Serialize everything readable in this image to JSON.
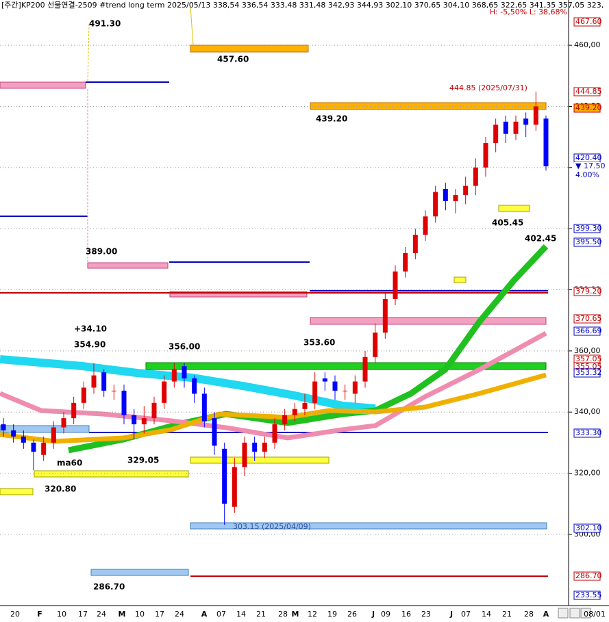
{
  "chart_data": {
    "type": "candlestick",
    "title": "[주간]KP200 선물연결-2509 #trend long term  2025/05/13 338,54 336,54 333,48 331,48 342,93 344,93 302,10 370,65 304,10 368,65 322,65 341,35 357,05 323,",
    "subtitle": "H: -5,50%  L: 38,68%",
    "open": [
      336,
      334,
      332,
      330,
      326,
      330,
      335,
      338,
      343,
      348,
      353,
      347,
      347,
      339,
      336,
      338,
      343,
      350,
      355,
      351,
      346,
      338,
      328,
      309,
      322,
      330,
      327,
      330,
      336,
      339,
      341,
      343,
      351,
      350,
      347,
      346,
      350,
      358,
      366,
      377,
      386,
      392,
      398,
      404,
      413,
      409,
      411,
      414,
      420,
      428,
      435,
      431,
      436,
      434,
      436
    ],
    "high": [
      338,
      336,
      334,
      331,
      332,
      337,
      340,
      345,
      350,
      356,
      354,
      349,
      349,
      341,
      342,
      345,
      352,
      356,
      356,
      352,
      348,
      340,
      330,
      325,
      332,
      332,
      332,
      338,
      341,
      343,
      346,
      353,
      353,
      352,
      349,
      352,
      360,
      369,
      379,
      388,
      394,
      400,
      406,
      414,
      415,
      413,
      417,
      423,
      430,
      436,
      437,
      437,
      438,
      444.85,
      437
    ],
    "low": [
      332,
      330,
      328,
      321,
      324,
      328,
      333,
      336,
      341,
      346,
      345,
      344,
      336,
      331,
      333,
      336,
      341,
      348,
      348,
      343,
      335,
      326,
      303.15,
      307,
      319,
      324,
      325,
      328,
      334,
      337,
      339,
      341,
      347,
      344,
      344,
      343,
      348,
      356,
      364,
      375,
      384,
      390,
      396,
      402,
      406,
      405,
      408,
      411,
      417,
      425,
      428,
      429,
      430,
      432,
      419
    ],
    "close": [
      334,
      332,
      330,
      327,
      330,
      335,
      338,
      343,
      348,
      352,
      347,
      347,
      339,
      336,
      338,
      343,
      350,
      354,
      351,
      346,
      337,
      329,
      310,
      322,
      330,
      327,
      330,
      336,
      339,
      341,
      343,
      350,
      350,
      347,
      347,
      350,
      358,
      366,
      377,
      386,
      392,
      398,
      404,
      412,
      409,
      411,
      414,
      420,
      428,
      434,
      431,
      435,
      434,
      440,
      420.4
    ],
    "up_color": "#e00000",
    "down_color": "#0000ff",
    "ylim": [
      276.7,
      474.8
    ],
    "yticks": [
      {
        "value": 300,
        "label": "300,00"
      },
      {
        "value": 320,
        "label": "320,00"
      },
      {
        "value": 340,
        "label": "340,00"
      },
      {
        "value": 360,
        "label": "360,00"
      },
      {
        "value": 380,
        "label": "380,00"
      },
      {
        "value": 400,
        "label": "400,00"
      },
      {
        "value": 420,
        "label": "420,00"
      },
      {
        "value": 440,
        "label": "440,00"
      },
      {
        "value": 460,
        "label": "460,00"
      }
    ],
    "grid": true,
    "x_labels": [
      "20",
      "F",
      "10",
      "17",
      "24",
      "M",
      "10",
      "17",
      "24",
      "A",
      "07",
      "14",
      "21",
      "28",
      "M",
      "12",
      "19",
      "26",
      "J",
      "09",
      "16",
      "23",
      "J",
      "07",
      "14",
      "21",
      "28",
      "A",
      "08/01"
    ],
    "annotations": [
      "491.30",
      "457.60",
      "439.20",
      "389.00",
      "+34.10",
      "354.90",
      "356.00",
      "353.60",
      "329.05",
      "ma60",
      "320.80",
      "286.70",
      "405.45",
      "402.45",
      "444.85 (2025/07/31)",
      "303.15 (2025/04/09)"
    ],
    "price_labels": [
      "467.60",
      "444.85",
      "439.20",
      "420.40",
      "▼ 17.50",
      "4.00%",
      "399.30",
      "395.50",
      "379.20",
      "370.65",
      "366.69",
      "357.05",
      "355.05",
      "353.32",
      "333.30",
      "302.10",
      "286.70",
      "233.55"
    ]
  }
}
